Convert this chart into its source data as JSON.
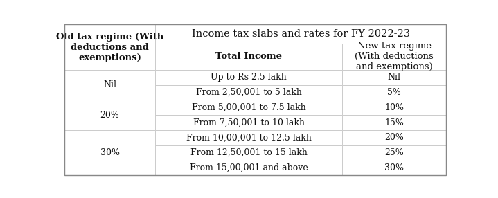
{
  "title": "Income tax slabs and rates for FY 2022-23",
  "col0_header": "Old tax regime (With\ndeductions and\nexemptions)",
  "col1_header": "Total Income",
  "col2_header": "New tax regime\n(With deductions\nand exemptions)",
  "rows": [
    [
      "Up to Rs 2.5 lakh",
      "Nil"
    ],
    [
      "From 2,50,001 to 5 lakh",
      "5%"
    ],
    [
      "From 5,00,001 to 7.5 lakh",
      "10%"
    ],
    [
      "From 7,50,001 to 10 lakh",
      "15%"
    ],
    [
      "From 10,00,001 to 12.5 lakh",
      "20%"
    ],
    [
      "From 12,50,001 to 15 lakh",
      "25%"
    ],
    [
      "From 15,00,001 and above",
      "30%"
    ]
  ],
  "col0_groups": [
    {
      "label": "Nil",
      "row_indices": [
        0,
        1
      ]
    },
    {
      "label": "20%",
      "row_indices": [
        2,
        3
      ]
    },
    {
      "label": "30%",
      "row_indices": [
        4,
        5,
        6
      ]
    }
  ],
  "line_color": "#cccccc",
  "text_color": "#111111",
  "title_fontsize": 10.5,
  "header_fontsize": 9.5,
  "cell_fontsize": 9.0,
  "figsize": [
    7.19,
    2.86
  ],
  "dpi": 100
}
